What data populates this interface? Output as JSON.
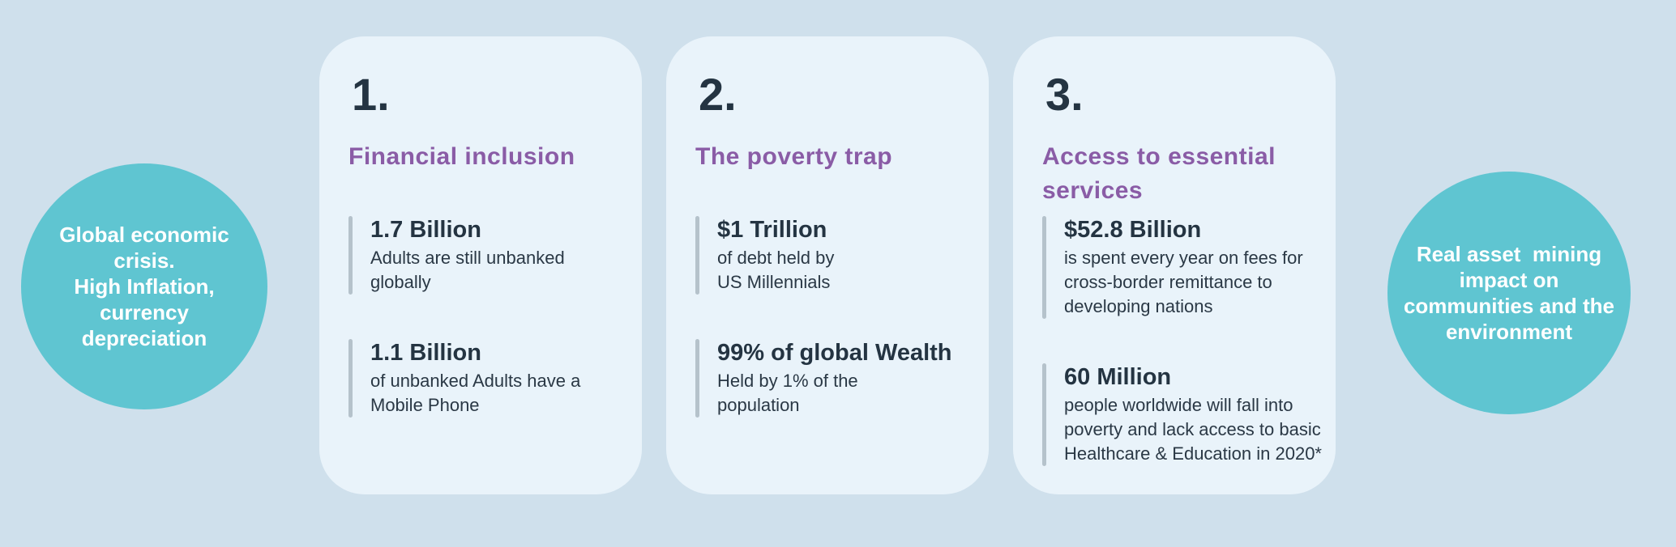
{
  "palette": {
    "background": "#cfe0ec",
    "card_background": "#e9f3fa",
    "circle_teal": "#5fc5d1",
    "heading_purple": "#8a5ca6",
    "text_dark_navy": "#243442",
    "stat_bar_gray": "#b5c2cb",
    "circle_text_white": "#ffffff"
  },
  "left_circle": {
    "text": "Global economic\ncrisis.\nHigh Inflation,\ncurrency\ndepreciation"
  },
  "right_circle": {
    "text": "Real asset  mining\nimpact on\ncommunities and the\nenvironment"
  },
  "cards": [
    {
      "number": "1.",
      "title": "Financial inclusion",
      "stats": [
        {
          "value": "1.7 Billion",
          "desc": "Adults are still unbanked\nglobally"
        },
        {
          "value": "1.1 Billion",
          "desc": "of unbanked Adults have a\nMobile Phone"
        }
      ]
    },
    {
      "number": "2.",
      "title": "The poverty trap",
      "stats": [
        {
          "value": "$1 Trillion",
          "desc": "of debt held by\nUS Millennials"
        },
        {
          "value": "99% of global Wealth",
          "desc": "Held by 1% of the\npopulation"
        }
      ]
    },
    {
      "number": "3.",
      "title": "Access to essential\nservices",
      "stats": [
        {
          "value": "$52.8 Billion",
          "desc": "is spent every year on fees for\ncross-border remittance to\ndeveloping nations"
        },
        {
          "value": "60 Million",
          "desc": "people worldwide will fall into\npoverty and lack access to basic\nHealthcare & Education in 2020*"
        }
      ]
    }
  ]
}
